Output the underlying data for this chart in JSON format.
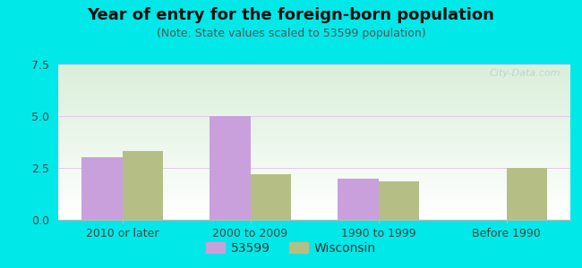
{
  "title": "Year of entry for the foreign-born population",
  "subtitle": "(Note: State values scaled to 53599 population)",
  "categories": [
    "2010 or later",
    "2000 to 2009",
    "1990 to 1999",
    "Before 1990"
  ],
  "series_53599": [
    3.0,
    5.0,
    2.0,
    0.0
  ],
  "series_wisconsin": [
    3.3,
    2.2,
    1.85,
    2.5
  ],
  "color_53599": "#c9a0dc",
  "color_wisconsin": "#b5bf85",
  "ylim": [
    0,
    7.5
  ],
  "yticks": [
    0,
    2.5,
    5,
    7.5
  ],
  "bar_width": 0.32,
  "bg_outer": "#00e8e8",
  "legend_53599": "53599",
  "legend_wisconsin": "Wisconsin",
  "title_fontsize": 13,
  "subtitle_fontsize": 9,
  "tick_fontsize": 9,
  "legend_fontsize": 10,
  "grid_color": "#ddeecc",
  "watermark": "City-Data.com"
}
